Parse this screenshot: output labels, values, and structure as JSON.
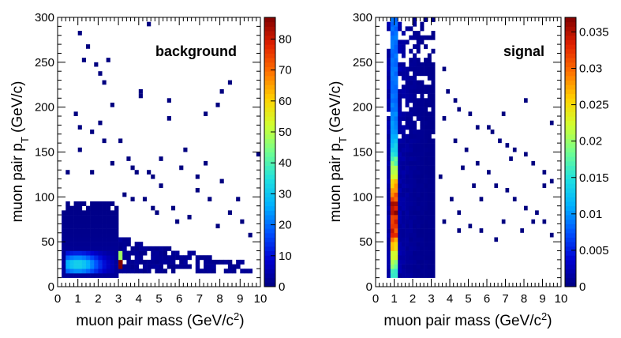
{
  "chart_data": [
    {
      "type": "heatmap",
      "label": "background",
      "xlabel": "muon pair mass (GeV/c²)",
      "xlabel_main": "muon pair mass (GeV/c",
      "xlabel_sup": "2",
      "xlabel_close": ")",
      "ylabel_main": "muon pair p",
      "ylabel_sub": "T",
      "ylabel_unit": " (GeV/c)",
      "xlim": [
        0,
        10
      ],
      "ylim": [
        0,
        300
      ],
      "xticks": [
        "0",
        "1",
        "2",
        "3",
        "4",
        "5",
        "6",
        "7",
        "8",
        "9",
        "10"
      ],
      "yticks": [
        "0",
        "50",
        "100",
        "150",
        "200",
        "250",
        "300"
      ],
      "zlim": [
        0,
        87
      ],
      "zticks": [
        "0",
        "10",
        "20",
        "30",
        "40",
        "50",
        "60",
        "70",
        "80"
      ],
      "colormap": [
        "#000080",
        "#0000d0",
        "#0050ff",
        "#00b0ff",
        "#20e0e0",
        "#70ff90",
        "#d0ff30",
        "#ffd000",
        "#ff7000",
        "#e02000",
        "#800000"
      ],
      "bins": {
        "x_width": 0.2,
        "y_width": 5
      },
      "density_model": {
        "core": {
          "x": [
            0.2,
            3.0
          ],
          "y": [
            10,
            95
          ]
        },
        "hot_band": {
          "x": [
            0.4,
            2.8
          ],
          "y": [
            15,
            40
          ],
          "peak": [
            1.0,
            25,
            30
          ]
        },
        "jpsi_peak": {
          "x": 3.1,
          "y": [
            20,
            40
          ],
          "value": 87
        },
        "tail": {
          "x": [
            3.0,
            9.8
          ],
          "y": [
            15,
            65
          ]
        }
      },
      "scatter_points": [
        [
          1.1,
          280
        ],
        [
          1.5,
          265
        ],
        [
          1.9,
          245
        ],
        [
          2.1,
          235
        ],
        [
          2.3,
          228
        ],
        [
          1.4,
          250
        ],
        [
          2.5,
          250
        ],
        [
          0.9,
          190
        ],
        [
          1.2,
          175
        ],
        [
          2.0,
          180
        ],
        [
          2.3,
          160
        ],
        [
          1.7,
          170
        ],
        [
          1.0,
          150
        ],
        [
          3.0,
          160
        ],
        [
          4.0,
          215
        ],
        [
          4.1,
          213
        ],
        [
          5.5,
          207
        ],
        [
          6.3,
          150
        ],
        [
          7.3,
          190
        ],
        [
          7.9,
          202
        ],
        [
          8.2,
          215
        ],
        [
          8.5,
          228
        ],
        [
          7.2,
          135
        ],
        [
          6.8,
          120
        ],
        [
          8.1,
          115
        ],
        [
          4.7,
          120
        ],
        [
          5.1,
          112
        ],
        [
          3.6,
          130
        ],
        [
          3.9,
          125
        ],
        [
          6.1,
          130
        ],
        [
          9.8,
          145
        ],
        [
          3.3,
          103
        ],
        [
          3.7,
          98
        ],
        [
          4.3,
          96
        ],
        [
          4.8,
          88
        ],
        [
          5.7,
          88
        ],
        [
          6.9,
          106
        ],
        [
          7.4,
          98
        ],
        [
          8.4,
          84
        ],
        [
          9.1,
          72
        ],
        [
          7.8,
          67
        ],
        [
          5.6,
          185
        ],
        [
          2.7,
          200
        ],
        [
          4.6,
          125
        ],
        [
          5.9,
          74
        ],
        [
          6.6,
          78
        ],
        [
          4.9,
          82
        ],
        [
          8.8,
          95
        ],
        [
          9.4,
          58
        ],
        [
          5.0,
          140
        ],
        [
          3.4,
          140
        ],
        [
          2.8,
          135
        ],
        [
          1.6,
          127
        ],
        [
          0.4,
          127
        ],
        [
          4.5,
          290
        ]
      ]
    },
    {
      "type": "heatmap",
      "label": "signal",
      "xlabel": "muon pair mass (GeV/c²)",
      "xlabel_main": "muon pair mass (GeV/c",
      "xlabel_sup": "2",
      "xlabel_close": ")",
      "ylabel_main": "muon pair p",
      "ylabel_sub": "T",
      "ylabel_unit": " (GeV/c)",
      "xlim": [
        0,
        10
      ],
      "ylim": [
        0,
        300
      ],
      "xticks": [
        "0",
        "1",
        "2",
        "3",
        "4",
        "5",
        "6",
        "7",
        "8",
        "9",
        "10"
      ],
      "yticks": [
        "0",
        "50",
        "100",
        "150",
        "200",
        "250",
        "300"
      ],
      "zlim": [
        0,
        0.037
      ],
      "zticks": [
        "0",
        "0.005",
        "0.01",
        "0.015",
        "0.02",
        "0.025",
        "0.03",
        "0.035"
      ],
      "colormap": [
        "#000080",
        "#0000d0",
        "#0050ff",
        "#00b0ff",
        "#20e0e0",
        "#70ff90",
        "#d0ff30",
        "#ffd000",
        "#ff7000",
        "#e02000",
        "#800000"
      ],
      "bins": {
        "x_width": 0.2,
        "y_width": 5
      },
      "density_model": {
        "core": {
          "x": [
            0.6,
            3.2
          ],
          "y": [
            10,
            300
          ]
        },
        "ridge": {
          "x": [
            0.8,
            1.2
          ],
          "y": [
            10,
            300
          ],
          "peak_y": 80,
          "value": 0.037
        },
        "tail": {
          "x": [
            3.2,
            9.6
          ],
          "y": [
            40,
            220
          ]
        }
      },
      "scatter_points": [
        [
          3.9,
          215
        ],
        [
          4.3,
          207
        ],
        [
          4.6,
          196
        ],
        [
          5.1,
          192
        ],
        [
          5.6,
          178
        ],
        [
          6.2,
          170
        ],
        [
          6.7,
          162
        ],
        [
          7.1,
          155
        ],
        [
          7.6,
          150
        ],
        [
          8.0,
          145
        ],
        [
          8.6,
          138
        ],
        [
          9.1,
          128
        ],
        [
          9.6,
          118
        ],
        [
          3.7,
          185
        ],
        [
          4.2,
          160
        ],
        [
          4.9,
          150
        ],
        [
          5.4,
          135
        ],
        [
          6.0,
          128
        ],
        [
          6.5,
          112
        ],
        [
          7.0,
          105
        ],
        [
          7.5,
          95
        ],
        [
          8.1,
          88
        ],
        [
          8.7,
          80
        ],
        [
          9.2,
          70
        ],
        [
          9.5,
          55
        ],
        [
          3.4,
          120
        ],
        [
          4.0,
          95
        ],
        [
          4.5,
          80
        ],
        [
          5.0,
          65
        ],
        [
          5.8,
          60
        ],
        [
          6.4,
          52
        ],
        [
          7.8,
          63
        ],
        [
          8.4,
          72
        ],
        [
          9.0,
          110
        ],
        [
          6.9,
          190
        ],
        [
          5.2,
          110
        ],
        [
          4.7,
          130
        ],
        [
          3.6,
          240
        ],
        [
          8.2,
          205
        ],
        [
          6.1,
          175
        ],
        [
          7.3,
          140
        ],
        [
          5.7,
          98
        ],
        [
          4.4,
          60
        ],
        [
          3.8,
          70
        ],
        [
          6.8,
          70
        ],
        [
          9.4,
          180
        ]
      ]
    }
  ]
}
